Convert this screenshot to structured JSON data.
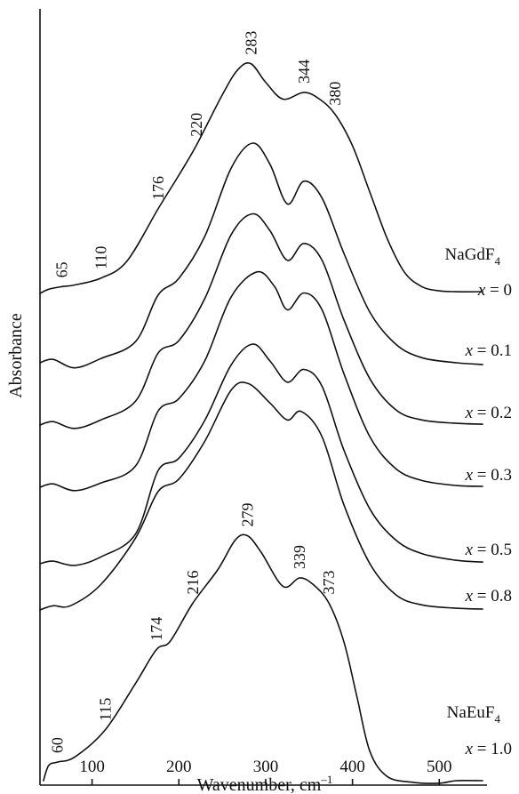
{
  "chart_data": {
    "type": "line",
    "xlabel_main": "Wavenumber, cm",
    "xlabel_sup": "–1",
    "ylabel": "Absorbance",
    "xlim": [
      40,
      555
    ],
    "xticks": [
      100,
      200,
      300,
      400,
      500
    ],
    "grid": false,
    "series": [
      {
        "label_main": "x",
        "label_value": "= 0",
        "compound_main": "NaGdF",
        "compound_sub": "4",
        "baseline_y": 330,
        "points": [
          [
            40,
            0
          ],
          [
            50,
            5
          ],
          [
            65,
            8
          ],
          [
            80,
            10
          ],
          [
            110,
            18
          ],
          [
            140,
            38
          ],
          [
            176,
            100
          ],
          [
            200,
            140
          ],
          [
            220,
            175
          ],
          [
            250,
            235
          ],
          [
            268,
            265
          ],
          [
            283,
            272
          ],
          [
            300,
            250
          ],
          [
            320,
            230
          ],
          [
            344,
            238
          ],
          [
            362,
            230
          ],
          [
            380,
            212
          ],
          [
            400,
            175
          ],
          [
            420,
            120
          ],
          [
            440,
            65
          ],
          [
            460,
            25
          ],
          [
            480,
            8
          ],
          [
            500,
            3
          ],
          [
            520,
            2
          ],
          [
            550,
            2
          ]
        ],
        "peak_labels": [
          {
            "x": 65,
            "text": "65"
          },
          {
            "x": 110,
            "text": "110"
          },
          {
            "x": 176,
            "text": "176"
          },
          {
            "x": 220,
            "text": "220"
          },
          {
            "x": 283,
            "text": "283"
          },
          {
            "x": 344,
            "text": "344"
          },
          {
            "x": 380,
            "text": "380"
          }
        ]
      },
      {
        "label_main": "x",
        "label_value": "= 0.1",
        "baseline_y": 408,
        "points": [
          [
            40,
            0
          ],
          [
            55,
            4
          ],
          [
            80,
            -6
          ],
          [
            110,
            5
          ],
          [
            150,
            25
          ],
          [
            176,
            80
          ],
          [
            200,
            100
          ],
          [
            230,
            150
          ],
          [
            260,
            230
          ],
          [
            285,
            260
          ],
          [
            305,
            235
          ],
          [
            325,
            188
          ],
          [
            344,
            215
          ],
          [
            365,
            195
          ],
          [
            390,
            130
          ],
          [
            420,
            60
          ],
          [
            450,
            22
          ],
          [
            480,
            6
          ],
          [
            520,
            0
          ],
          [
            550,
            -2
          ]
        ],
        "peak_labels": []
      },
      {
        "label_main": "x",
        "label_value": "= 0.2",
        "baseline_y": 478,
        "points": [
          [
            40,
            0
          ],
          [
            55,
            4
          ],
          [
            80,
            -4
          ],
          [
            110,
            6
          ],
          [
            150,
            28
          ],
          [
            176,
            85
          ],
          [
            200,
            100
          ],
          [
            230,
            150
          ],
          [
            260,
            225
          ],
          [
            285,
            250
          ],
          [
            305,
            230
          ],
          [
            325,
            195
          ],
          [
            344,
            215
          ],
          [
            365,
            195
          ],
          [
            390,
            125
          ],
          [
            420,
            55
          ],
          [
            450,
            18
          ],
          [
            480,
            6
          ],
          [
            520,
            2
          ],
          [
            550,
            1
          ]
        ],
        "peak_labels": []
      },
      {
        "label_main": "x",
        "label_value": "= 0.3",
        "baseline_y": 548,
        "points": [
          [
            40,
            0
          ],
          [
            55,
            4
          ],
          [
            80,
            -4
          ],
          [
            110,
            5
          ],
          [
            150,
            25
          ],
          [
            176,
            90
          ],
          [
            200,
            105
          ],
          [
            230,
            150
          ],
          [
            260,
            225
          ],
          [
            290,
            255
          ],
          [
            310,
            238
          ],
          [
            325,
            210
          ],
          [
            344,
            230
          ],
          [
            365,
            210
          ],
          [
            390,
            135
          ],
          [
            420,
            60
          ],
          [
            450,
            22
          ],
          [
            480,
            8
          ],
          [
            520,
            2
          ],
          [
            550,
            1
          ]
        ],
        "peak_labels": []
      },
      {
        "label_main": "x",
        "label_value": "= 0.5",
        "baseline_y": 634,
        "points": [
          [
            40,
            0
          ],
          [
            55,
            3
          ],
          [
            80,
            -2
          ],
          [
            110,
            8
          ],
          [
            150,
            35
          ],
          [
            176,
            110
          ],
          [
            200,
            125
          ],
          [
            230,
            170
          ],
          [
            260,
            235
          ],
          [
            285,
            260
          ],
          [
            305,
            240
          ],
          [
            325,
            215
          ],
          [
            344,
            230
          ],
          [
            365,
            210
          ],
          [
            390,
            135
          ],
          [
            420,
            65
          ],
          [
            450,
            28
          ],
          [
            480,
            12
          ],
          [
            520,
            4
          ],
          [
            550,
            2
          ]
        ],
        "peak_labels": []
      },
      {
        "label_main": "x",
        "label_value": "= 0.8",
        "baseline_y": 686,
        "points": [
          [
            40,
            0
          ],
          [
            55,
            5
          ],
          [
            75,
            5
          ],
          [
            110,
            30
          ],
          [
            150,
            85
          ],
          [
            176,
            140
          ],
          [
            200,
            155
          ],
          [
            230,
            200
          ],
          [
            260,
            260
          ],
          [
            280,
            268
          ],
          [
            305,
            245
          ],
          [
            325,
            225
          ],
          [
            341,
            235
          ],
          [
            365,
            205
          ],
          [
            390,
            125
          ],
          [
            420,
            55
          ],
          [
            450,
            18
          ],
          [
            480,
            6
          ],
          [
            520,
            2
          ],
          [
            550,
            1
          ]
        ],
        "peak_labels": []
      },
      {
        "label_main": "x",
        "label_value": "= 1.0",
        "compound_main": "NaEuF",
        "compound_sub": "4",
        "baseline_y": 878,
        "points": [
          [
            44,
            0
          ],
          [
            50,
            18
          ],
          [
            60,
            22
          ],
          [
            80,
            28
          ],
          [
            115,
            60
          ],
          [
            150,
            115
          ],
          [
            174,
            155
          ],
          [
            190,
            165
          ],
          [
            216,
            210
          ],
          [
            245,
            250
          ],
          [
            265,
            285
          ],
          [
            279,
            290
          ],
          [
            295,
            270
          ],
          [
            320,
            230
          ],
          [
            339,
            240
          ],
          [
            355,
            232
          ],
          [
            373,
            210
          ],
          [
            390,
            165
          ],
          [
            405,
            100
          ],
          [
            420,
            35
          ],
          [
            440,
            5
          ],
          [
            470,
            -2
          ],
          [
            500,
            -3
          ],
          [
            520,
            0
          ],
          [
            550,
            0
          ]
        ],
        "peak_labels": [
          {
            "x": 60,
            "text": "60"
          },
          {
            "x": 115,
            "text": "115"
          },
          {
            "x": 174,
            "text": "174"
          },
          {
            "x": 216,
            "text": "216"
          },
          {
            "x": 279,
            "text": "279"
          },
          {
            "x": 339,
            "text": "339"
          },
          {
            "x": 373,
            "text": "373"
          }
        ]
      }
    ]
  }
}
